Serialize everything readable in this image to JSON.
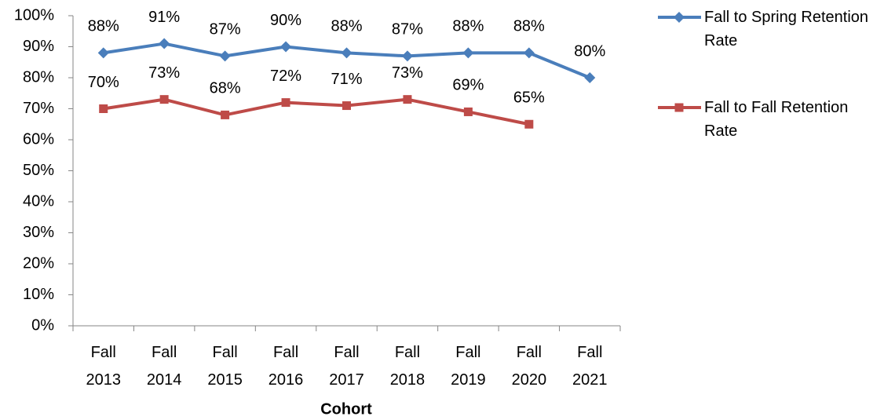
{
  "chart_data": {
    "type": "line",
    "x_label": "Cohort",
    "categories": [
      "Fall 2013",
      "Fall 2014",
      "Fall 2015",
      "Fall 2016",
      "Fall 2017",
      "Fall 2018",
      "Fall 2019",
      "Fall 2020",
      "Fall 2021"
    ],
    "series": [
      {
        "name": "Fall to Spring Retention Rate",
        "color": "#4a7ebb",
        "marker": "diamond",
        "values": [
          88,
          91,
          87,
          90,
          88,
          87,
          88,
          88,
          80
        ],
        "value_labels": [
          "88%",
          "91%",
          "87%",
          "90%",
          "88%",
          "87%",
          "88%",
          "88%",
          "80%"
        ]
      },
      {
        "name": "Fall to Fall Retention Rate",
        "color": "#be4b48",
        "marker": "square",
        "values": [
          70,
          73,
          68,
          72,
          71,
          73,
          69,
          65,
          null
        ],
        "value_labels": [
          "70%",
          "73%",
          "68%",
          "72%",
          "71%",
          "73%",
          "69%",
          "65%",
          null
        ]
      }
    ],
    "ylim": [
      0,
      100
    ],
    "yticks": [
      {
        "value": 0,
        "label": "0%"
      },
      {
        "value": 10,
        "label": "10%"
      },
      {
        "value": 20,
        "label": "20%"
      },
      {
        "value": 30,
        "label": "30%"
      },
      {
        "value": 40,
        "label": "40%"
      },
      {
        "value": 50,
        "label": "50%"
      },
      {
        "value": 60,
        "label": "60%"
      },
      {
        "value": 70,
        "label": "70%"
      },
      {
        "value": 80,
        "label": "80%"
      },
      {
        "value": 90,
        "label": "90%"
      },
      {
        "value": 100,
        "label": "100%"
      }
    ],
    "grid": false,
    "legend": "right"
  }
}
